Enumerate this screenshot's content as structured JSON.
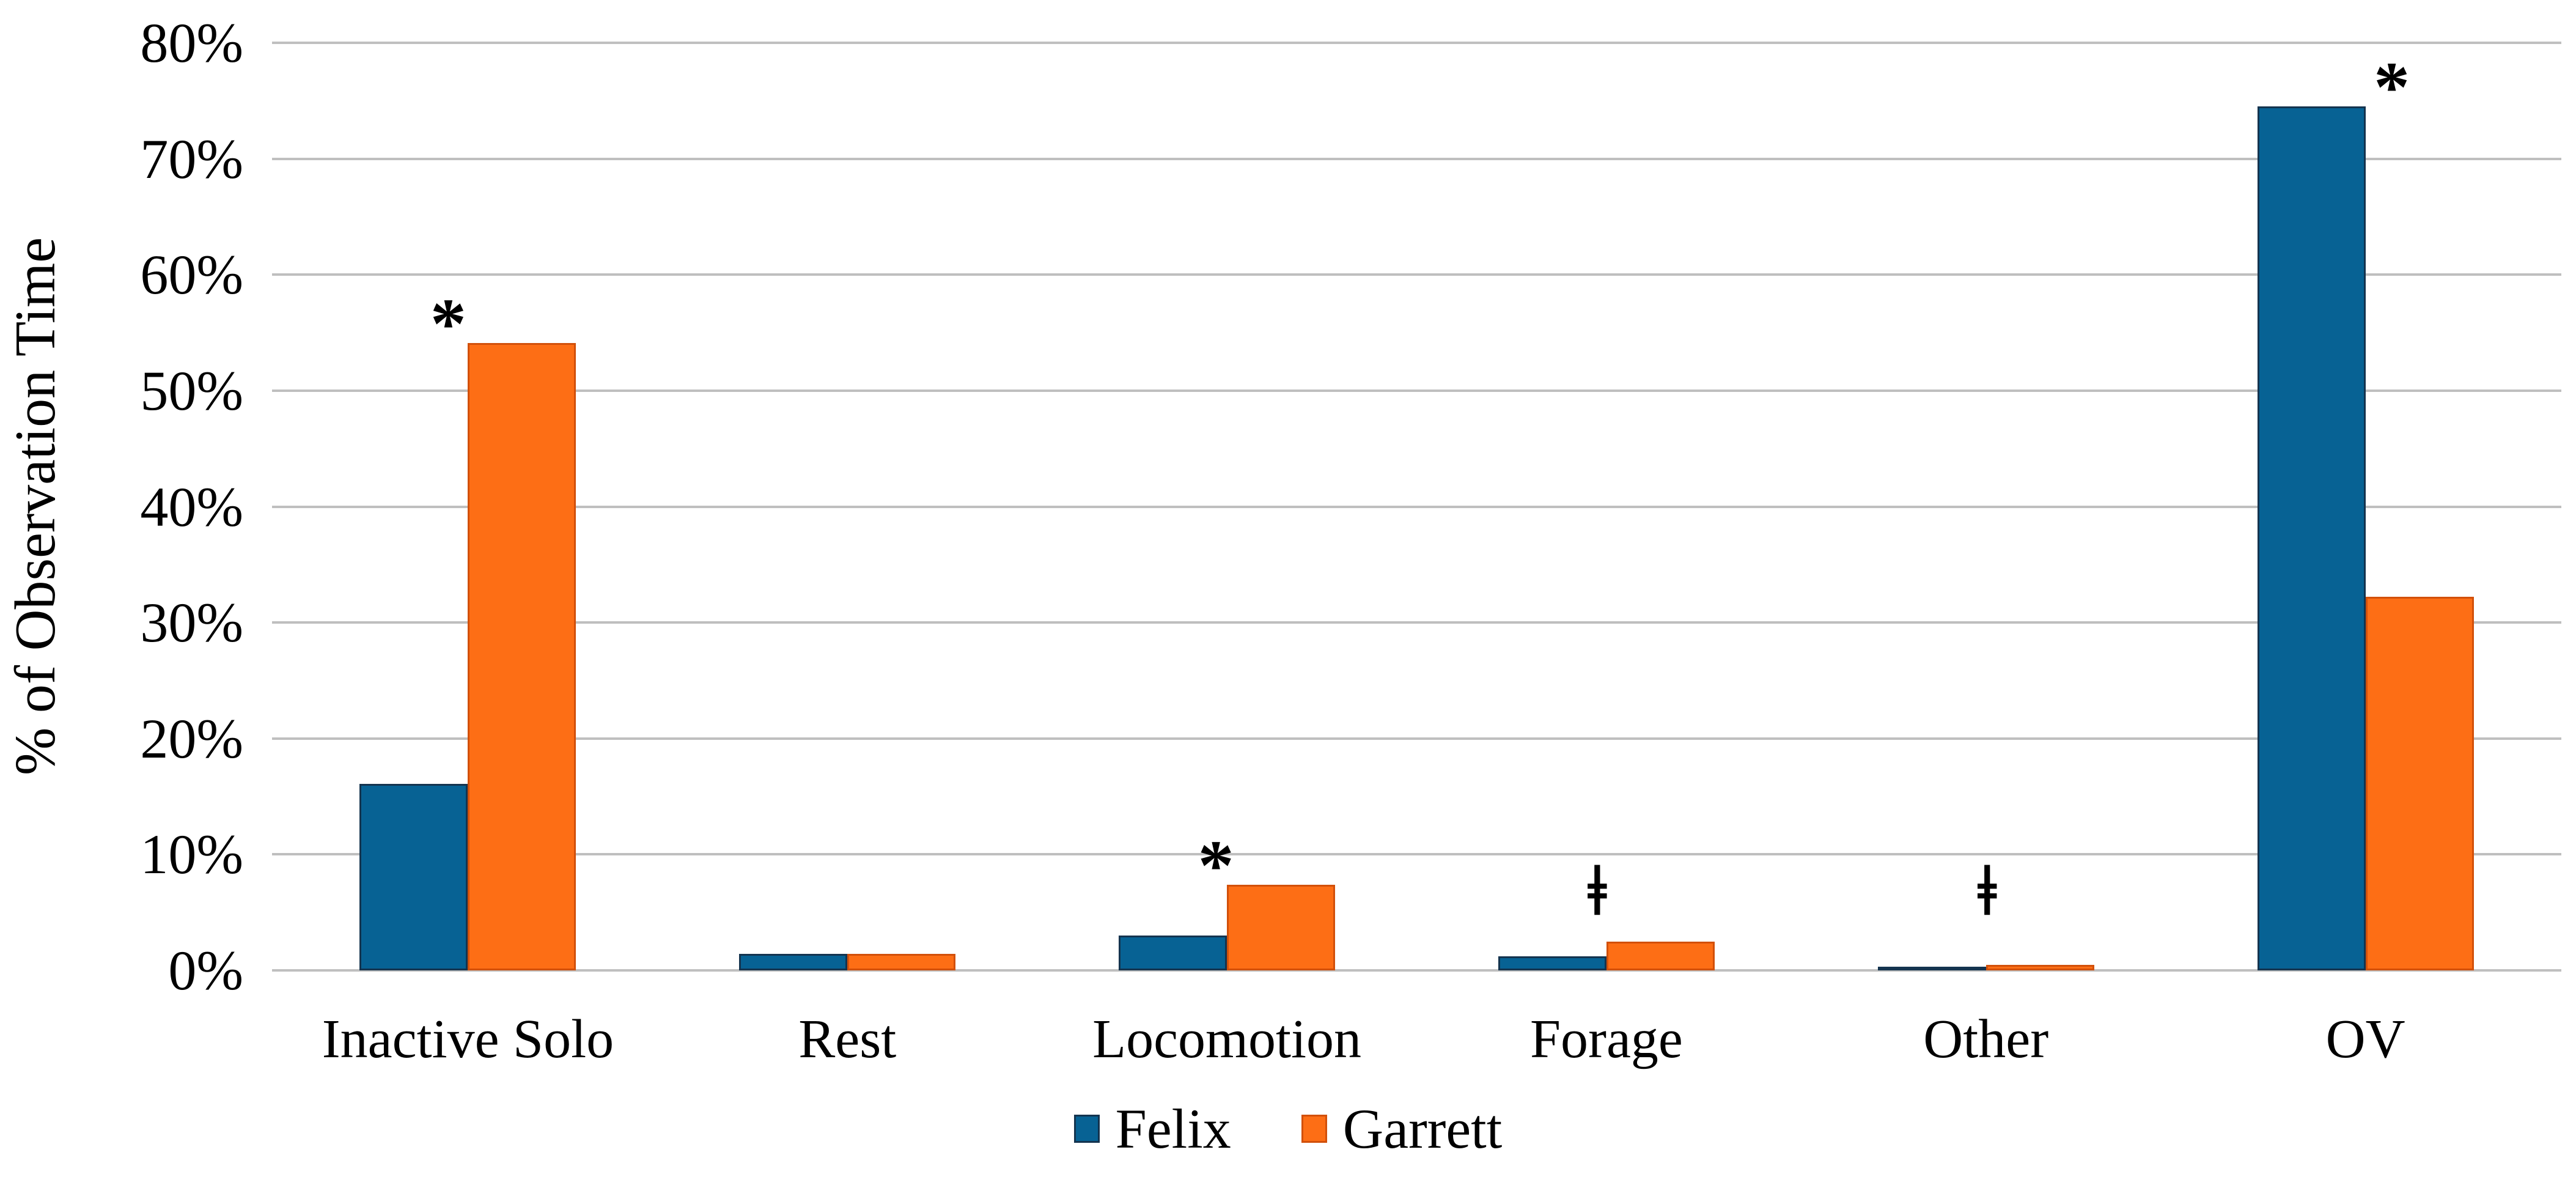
{
  "chart_data": {
    "type": "bar",
    "title": "",
    "ylabel": "% of Observation Time",
    "xlabel": "",
    "categories": [
      "Inactive Solo",
      "Rest",
      "Locomotion",
      "Forage",
      "Other",
      "OV"
    ],
    "series": [
      {
        "name": "Felix",
        "color": "#076294",
        "border_color": "#14344F",
        "values": [
          16.1,
          1.4,
          3.0,
          1.2,
          0.3,
          74.5
        ]
      },
      {
        "name": "Garrett",
        "color": "#FD6E15",
        "border_color": "#D2500A",
        "values": [
          54.1,
          1.4,
          7.4,
          2.5,
          0.5,
          32.2
        ]
      }
    ],
    "ylim": [
      0,
      80
    ],
    "yticks": [
      {
        "value": 0,
        "label": "0%"
      },
      {
        "value": 10,
        "label": "10%"
      },
      {
        "value": 20,
        "label": "20%"
      },
      {
        "value": 30,
        "label": "30%"
      },
      {
        "value": 40,
        "label": "40%"
      },
      {
        "value": 50,
        "label": "50%"
      },
      {
        "value": 60,
        "label": "60%"
      },
      {
        "value": 70,
        "label": "70%"
      },
      {
        "value": 80,
        "label": "80%"
      }
    ],
    "grid": true,
    "gridline_color": "#BFBFBF",
    "legend_position": "bottom-center",
    "text_color": "#000000",
    "annotations": [
      {
        "category": "Inactive Solo",
        "symbol": "*",
        "y_pct": 56.2,
        "dx": -32
      },
      {
        "category": "Locomotion",
        "symbol": "*",
        "y_pct": 9.5,
        "dx": -18
      },
      {
        "category": "Forage",
        "symbol": "ǂ",
        "y_pct": 6.8,
        "dx": -15
      },
      {
        "category": "Other",
        "symbol": "ǂ",
        "y_pct": 6.8,
        "dx": 2
      },
      {
        "category": "OV",
        "symbol": "*",
        "y_pct": 76.6,
        "dx": 43
      }
    ]
  }
}
